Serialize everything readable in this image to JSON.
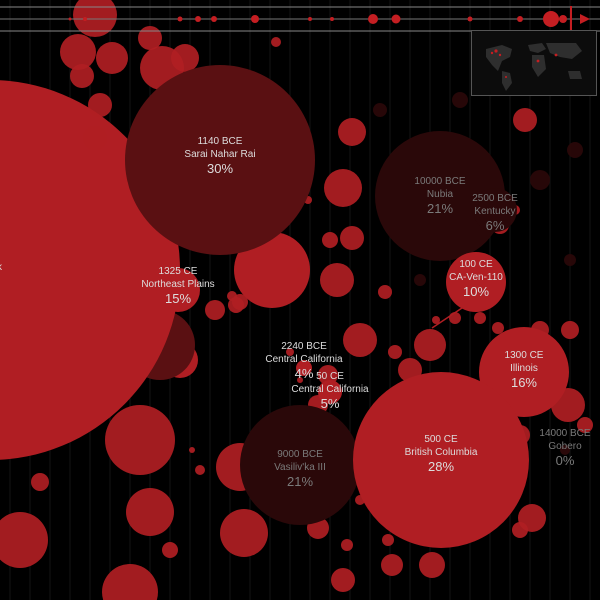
{
  "timeline": {
    "accent": "#c41e22",
    "line_color": "#888888"
  },
  "minimap": {
    "icon": "world-map-icon"
  },
  "colors": {
    "bubble": "#b01e23",
    "bubble_dark": "#5a1012",
    "bubble_faint": "#2a0809",
    "text": "#dddddd",
    "text_dim": "#7a7a7a"
  },
  "sites": [
    {
      "year": "1140 BCE",
      "place": "Sarai Nahar Rai",
      "percent": "30%",
      "tone": "dark"
    },
    {
      "year": "10000 BCE",
      "place": "Nubia",
      "percent": "21%",
      "tone": "faint"
    },
    {
      "year": "2500 BCE",
      "place": "Kentucky",
      "percent": "6%",
      "tone": "faint"
    },
    {
      "year": "1325 CE",
      "place": "Northeast Plains",
      "percent": "15%",
      "tone": "bright"
    },
    {
      "year": "100 CE",
      "place": "CA-Ven-110",
      "percent": "10%",
      "tone": "bright"
    },
    {
      "year": "2240 BCE",
      "place": "Central California",
      "percent": "4%",
      "tone": "bright"
    },
    {
      "year": "50 CE",
      "place": "Central California",
      "percent": "5%",
      "tone": "bright"
    },
    {
      "year": "1300 CE",
      "place": "Illinois",
      "percent": "16%",
      "tone": "bright"
    },
    {
      "year": "500 CE",
      "place": "British Columbia",
      "percent": "28%",
      "tone": "bright"
    },
    {
      "year": "9000 BCE",
      "place": "Vasiliv'ka III",
      "percent": "21%",
      "tone": "faint"
    },
    {
      "year": "14000 BCE",
      "place": "Gobero",
      "percent": "0%",
      "tone": "faint"
    },
    {
      "year": "",
      "place": "eek",
      "percent": "",
      "tone": "bright"
    }
  ]
}
